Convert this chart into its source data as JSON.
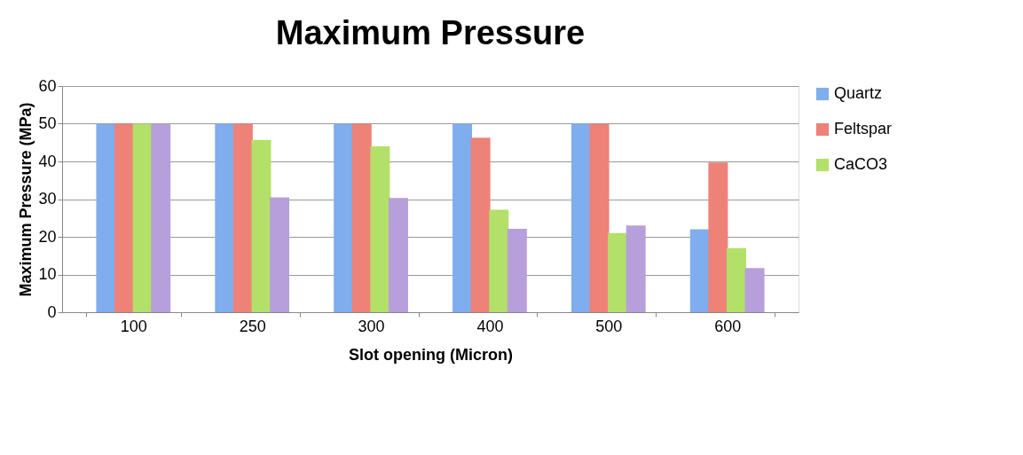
{
  "chart_data": {
    "type": "bar",
    "title": "Maximum Pressure",
    "xlabel": "Slot opening (Micron)",
    "ylabel": "Maximum Pressure (MPa)",
    "categories": [
      "100",
      "250",
      "300",
      "400",
      "500",
      "600"
    ],
    "series": [
      {
        "name": "Quartz",
        "color": "#7fadee",
        "values": [
          50,
          50,
          50,
          50,
          50,
          22
        ]
      },
      {
        "name": "Feltspar",
        "color": "#ee8278",
        "values": [
          50,
          50,
          50,
          46.3,
          50,
          39.7
        ]
      },
      {
        "name": "CaCO3",
        "color": "#b3e068",
        "values": [
          50,
          45.7,
          44,
          27.2,
          21,
          17
        ]
      },
      {
        "color": "#b79fdb",
        "values": [
          50,
          30.5,
          30.3,
          22.1,
          23,
          11.7
        ]
      }
    ],
    "ylim": [
      0,
      60
    ],
    "yticks": [
      0,
      10,
      20,
      30,
      40,
      50,
      60
    ],
    "grid": "y",
    "legend": "right"
  }
}
